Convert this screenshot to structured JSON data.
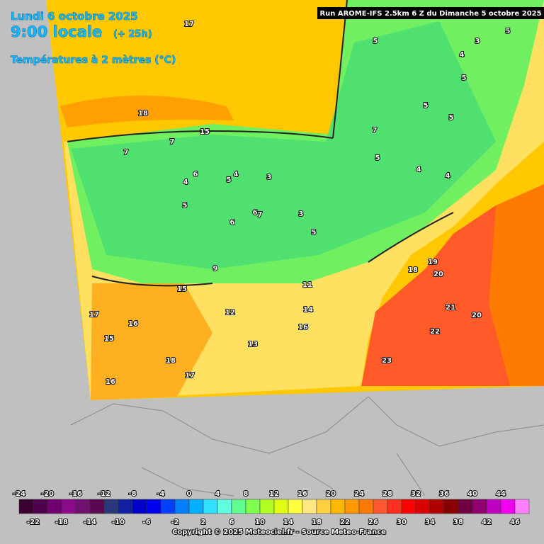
{
  "header": {
    "date": "Lundi 6 octobre 2025",
    "time": "9:00 locale",
    "lead": "(+ 25h)",
    "parameter": "Températures à 2 mètres (°C)",
    "run": "Run AROME-IFS 2.5km 6 Z du Dimanche 5 octobre 2025"
  },
  "map_labels": [
    "17",
    "18",
    "15",
    "7",
    "7",
    "6",
    "4",
    "5",
    "4",
    "3",
    "5",
    "6",
    "7",
    "6",
    "3",
    "5",
    "9",
    "15",
    "12",
    "11",
    "14",
    "16",
    "13",
    "18",
    "17",
    "16",
    "15",
    "16",
    "19",
    "18",
    "20",
    "21",
    "22",
    "23",
    "20",
    "5",
    "4",
    "5",
    "3",
    "5",
    "5",
    "5",
    "4",
    "4",
    "7",
    "5",
    "17"
  ],
  "scale": {
    "ticks": [
      -24,
      -22,
      -20,
      -18,
      -16,
      -14,
      -12,
      -10,
      -8,
      -6,
      -4,
      -2,
      0,
      2,
      4,
      6,
      8,
      10,
      12,
      14,
      16,
      18,
      20,
      22,
      24,
      26,
      28,
      30,
      32,
      34,
      36,
      38,
      40,
      42,
      44,
      46
    ],
    "colors": [
      "#3a0030",
      "#4e004e",
      "#6e0070",
      "#8a0a8a",
      "#701070",
      "#5a0850",
      "#283878",
      "#1020a0",
      "#0000c8",
      "#0000f0",
      "#0040ff",
      "#0080ff",
      "#00b0ff",
      "#30e0ff",
      "#60ffe0",
      "#60ff90",
      "#80ff50",
      "#b0ff20",
      "#e0ff10",
      "#ffff40",
      "#ffe880",
      "#ffd040",
      "#ffb800",
      "#ff9800",
      "#ff7800",
      "#ff5830",
      "#ff3020",
      "#ff0000",
      "#d80000",
      "#b00000",
      "#880000",
      "#700040",
      "#900070",
      "#c000c0",
      "#f000f0",
      "#ff80ff"
    ]
  },
  "footer": {
    "copyright": "Copyright © 2025 Meteociel.fr - Source Meteo-France"
  }
}
